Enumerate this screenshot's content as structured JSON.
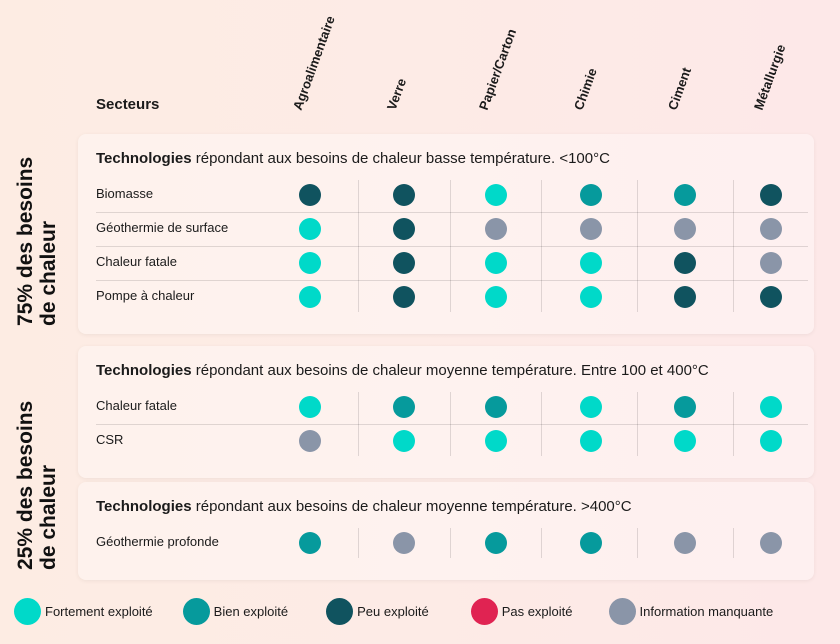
{
  "header": {
    "sectors_label": "Secteurs"
  },
  "colors": {
    "fort": "#00d9c9",
    "bien": "#069a9c",
    "peu": "#10535f",
    "pas": "#e02352",
    "na": "#8a95a8"
  },
  "side_labels": {
    "top_line1": "75% des besoins",
    "top_line2": "de chaleur",
    "bottom_line1": "25% des besoins",
    "bottom_line2": "de chaleur"
  },
  "legend": [
    {
      "key": "fort",
      "label": "Fortement exploité"
    },
    {
      "key": "bien",
      "label": "Bien exploité"
    },
    {
      "key": "peu",
      "label": "Peu exploité"
    },
    {
      "key": "pas",
      "label": "Pas exploité"
    },
    {
      "key": "na",
      "label": "Information manquante"
    }
  ],
  "chart_data": {
    "type": "table",
    "title": "Technologies de chaleur par secteur",
    "categories": [
      "Agroalimentaire",
      "Verre",
      "Papier/Carton",
      "Chimie",
      "Ciment",
      "Métallurgie"
    ],
    "groups": [
      {
        "title_bold": "Technologies",
        "title_rest": " répondant aux besoins de chaleur basse température. <100°C",
        "rows": [
          {
            "label": "Biomasse",
            "values": [
              "peu",
              "peu",
              "fort",
              "bien",
              "bien",
              "peu"
            ]
          },
          {
            "label": "Géothermie de surface",
            "values": [
              "fort",
              "peu",
              "na",
              "na",
              "na",
              "na"
            ]
          },
          {
            "label": "Chaleur fatale",
            "values": [
              "fort",
              "peu",
              "fort",
              "fort",
              "peu",
              "na"
            ]
          },
          {
            "label": "Pompe à chaleur",
            "values": [
              "fort",
              "peu",
              "fort",
              "fort",
              "peu",
              "peu"
            ]
          }
        ]
      },
      {
        "title_bold": "Technologies",
        "title_rest": " répondant aux besoins de chaleur moyenne température. Entre 100 et 400°C",
        "rows": [
          {
            "label": "Chaleur fatale",
            "values": [
              "fort",
              "bien",
              "bien",
              "fort",
              "bien",
              "fort"
            ]
          },
          {
            "label": "CSR",
            "values": [
              "na",
              "fort",
              "fort",
              "fort",
              "fort",
              "fort"
            ]
          }
        ]
      },
      {
        "title_bold": "Technologies",
        "title_rest": " répondant aux besoins de chaleur moyenne température. >400°C",
        "rows": [
          {
            "label": "Géothermie profonde",
            "values": [
              "bien",
              "na",
              "bien",
              "bien",
              "na",
              "na"
            ]
          }
        ]
      }
    ]
  }
}
